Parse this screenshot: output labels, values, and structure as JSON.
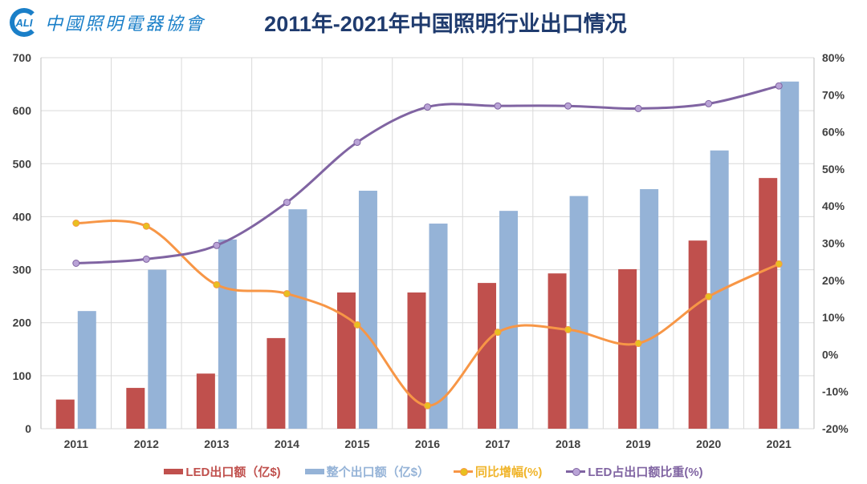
{
  "header": {
    "logo_text": "CALI 中國照明電器協會",
    "title": "2011年-2021年中国照明行业出口情况"
  },
  "chart_data": {
    "type": "bar+line",
    "title": "2011年-2021年中国照明行业出口情况",
    "categories": [
      "2011",
      "2012",
      "2013",
      "2014",
      "2015",
      "2016",
      "2017",
      "2018",
      "2019",
      "2020",
      "2021"
    ],
    "left_axis": {
      "range": [
        0,
        700
      ],
      "ticks": [
        "0",
        "100",
        "200",
        "300",
        "400",
        "500",
        "600",
        "700"
      ]
    },
    "right_axis": {
      "range": [
        -20,
        80
      ],
      "ticks": [
        "-20%",
        "-10%",
        "0%",
        "10%",
        "20%",
        "30%",
        "40%",
        "50%",
        "60%",
        "70%",
        "80%"
      ]
    },
    "grid": true,
    "legend_placement": "bottom",
    "series": [
      {
        "name": "LED出口额（亿$)",
        "type": "bar",
        "axis": "left",
        "color": "#c0504d",
        "values": [
          55,
          77,
          104,
          171,
          257,
          257,
          275,
          293,
          301,
          355,
          473
        ]
      },
      {
        "name": "整个出口额（亿$）",
        "type": "bar",
        "axis": "left",
        "color": "#95b3d7",
        "values": [
          222,
          300,
          357,
          414,
          449,
          387,
          411,
          439,
          452,
          525,
          655
        ]
      },
      {
        "name": "同比增幅(%)",
        "type": "line",
        "axis": "right",
        "color": "#f79646",
        "marker_color": "#e8c020",
        "values": [
          35.4,
          34.6,
          18.8,
          16.4,
          8.0,
          -13.8,
          6.0,
          6.7,
          3.0,
          15.6,
          24.4
        ]
      },
      {
        "name": "LED占出口额比重(%)",
        "type": "line",
        "axis": "right",
        "color": "#8064a2",
        "marker_color": "#b9a3d6",
        "values": [
          24.6,
          25.7,
          29.4,
          41.0,
          57.2,
          66.7,
          67.0,
          67.0,
          66.3,
          67.6,
          72.4
        ]
      }
    ]
  }
}
